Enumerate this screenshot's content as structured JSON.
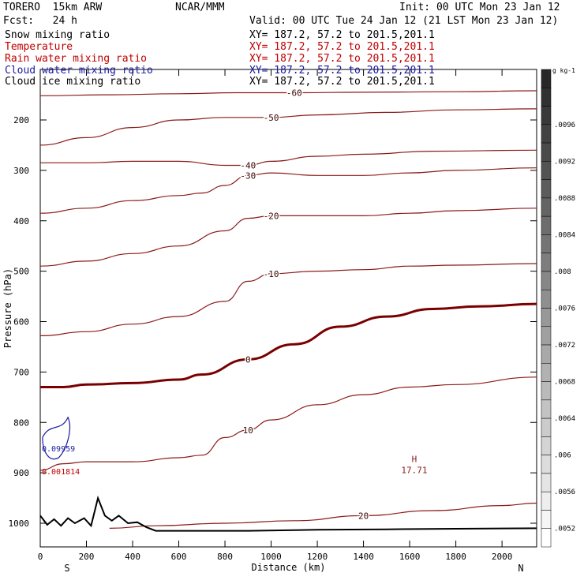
{
  "header": {
    "model": "TORERO  15km ARW",
    "center": "NCAR/MMM",
    "init": "Init: 00 UTC Mon 23 Jan 12",
    "fcst": "Fcst:   24 h",
    "valid": "Valid: 00 UTC Tue 24 Jan 12 (21 LST Mon 23 Jan 12)",
    "fields": [
      {
        "label": "Snow mixing ratio",
        "xy": "XY= 187.2, 57.2 to 201.5,201.1",
        "color": "#000000"
      },
      {
        "label": "Temperature",
        "xy": "XY= 187.2, 57.2 to 201.5,201.1",
        "color": "#c00000"
      },
      {
        "label": "Rain water mixing ratio",
        "xy": "XY= 187.2, 57.2 to 201.5,201.1",
        "color": "#c00000"
      },
      {
        "label": "Cloud water mixing ratio",
        "xy": "XY= 187.2, 57.2 to 201.5,201.1",
        "color": "#1a1aa0"
      },
      {
        "label": "Cloud ice mixing ratio",
        "xy": "XY= 187.2, 57.2 to 201.5,201.1",
        "color": "#000000"
      }
    ]
  },
  "chart_data": {
    "type": "contour",
    "xlabel": "Distance (km)",
    "ylabel": "Pressure (hPa)",
    "xlim": [
      0,
      2150
    ],
    "ylim": [
      1050,
      140
    ],
    "x_ticks": [
      0,
      200,
      400,
      600,
      800,
      1000,
      1200,
      1400,
      1600,
      1800,
      2000
    ],
    "y_ticks": [
      200,
      300,
      400,
      500,
      600,
      700,
      800,
      900,
      1000
    ],
    "x_endpoints": {
      "left": "S",
      "right": "N"
    },
    "colorbar": {
      "unit": "g kg-1",
      "ticks": [
        ".0096",
        ".0092",
        ".0088",
        ".0084",
        ".008",
        ".0076",
        ".0072",
        ".0068",
        ".0064",
        ".006",
        ".0056",
        ".0052"
      ]
    },
    "temperature_contours": [
      {
        "value": -60,
        "points": [
          [
            0,
            152
          ],
          [
            300,
            150
          ],
          [
            600,
            148
          ],
          [
            850,
            146
          ],
          [
            1100,
            146
          ],
          [
            1400,
            145
          ],
          [
            1800,
            144
          ],
          [
            2150,
            142
          ]
        ]
      },
      {
        "value": -50,
        "points": [
          [
            0,
            250
          ],
          [
            200,
            235
          ],
          [
            400,
            215
          ],
          [
            600,
            200
          ],
          [
            800,
            195
          ],
          [
            1000,
            195
          ],
          [
            1200,
            190
          ],
          [
            1500,
            185
          ],
          [
            1800,
            180
          ],
          [
            2150,
            178
          ]
        ]
      },
      {
        "value": -40,
        "points": [
          [
            0,
            285
          ],
          [
            200,
            285
          ],
          [
            400,
            282
          ],
          [
            600,
            282
          ],
          [
            800,
            290
          ],
          [
            900,
            290
          ],
          [
            1000,
            282
          ],
          [
            1200,
            272
          ],
          [
            1400,
            268
          ],
          [
            1700,
            262
          ],
          [
            2150,
            260
          ]
        ]
      },
      {
        "value": -30,
        "points": [
          [
            0,
            385
          ],
          [
            200,
            375
          ],
          [
            400,
            360
          ],
          [
            600,
            350
          ],
          [
            700,
            345
          ],
          [
            800,
            330
          ],
          [
            900,
            310
          ],
          [
            1000,
            305
          ],
          [
            1200,
            310
          ],
          [
            1400,
            310
          ],
          [
            1600,
            305
          ],
          [
            1800,
            300
          ],
          [
            2150,
            295
          ]
        ]
      },
      {
        "value": -20,
        "points": [
          [
            0,
            490
          ],
          [
            200,
            480
          ],
          [
            400,
            465
          ],
          [
            600,
            450
          ],
          [
            800,
            420
          ],
          [
            900,
            395
          ],
          [
            1000,
            390
          ],
          [
            1200,
            390
          ],
          [
            1400,
            390
          ],
          [
            1600,
            385
          ],
          [
            1800,
            380
          ],
          [
            2150,
            375
          ]
        ]
      },
      {
        "value": -10,
        "points": [
          [
            0,
            628
          ],
          [
            200,
            620
          ],
          [
            400,
            605
          ],
          [
            600,
            590
          ],
          [
            800,
            560
          ],
          [
            900,
            520
          ],
          [
            1000,
            505
          ],
          [
            1200,
            500
          ],
          [
            1400,
            497
          ],
          [
            1600,
            490
          ],
          [
            1800,
            488
          ],
          [
            2150,
            485
          ]
        ]
      },
      {
        "value": 0,
        "thick": true,
        "points": [
          [
            0,
            730
          ],
          [
            100,
            730
          ],
          [
            200,
            725
          ],
          [
            400,
            722
          ],
          [
            600,
            715
          ],
          [
            700,
            705
          ],
          [
            900,
            675
          ],
          [
            1100,
            645
          ],
          [
            1300,
            610
          ],
          [
            1500,
            590
          ],
          [
            1700,
            575
          ],
          [
            1900,
            570
          ],
          [
            2150,
            565
          ]
        ]
      },
      {
        "value": 10,
        "points": [
          [
            0,
            895
          ],
          [
            100,
            882
          ],
          [
            200,
            878
          ],
          [
            400,
            878
          ],
          [
            600,
            870
          ],
          [
            700,
            865
          ],
          [
            800,
            830
          ],
          [
            900,
            815
          ],
          [
            1000,
            795
          ],
          [
            1200,
            765
          ],
          [
            1400,
            745
          ],
          [
            1600,
            730
          ],
          [
            1800,
            725
          ],
          [
            2150,
            710
          ]
        ]
      },
      {
        "value": 20,
        "points": [
          [
            300,
            1010
          ],
          [
            500,
            1005
          ],
          [
            800,
            1000
          ],
          [
            1100,
            995
          ],
          [
            1400,
            985
          ],
          [
            1700,
            975
          ],
          [
            2000,
            965
          ],
          [
            2150,
            960
          ]
        ]
      }
    ],
    "high_marker": {
      "label": "H",
      "value": "17.71",
      "x": 1620,
      "p": 888
    },
    "cloud_water_label": "0.09959",
    "rain_water_label": "0.001814"
  }
}
